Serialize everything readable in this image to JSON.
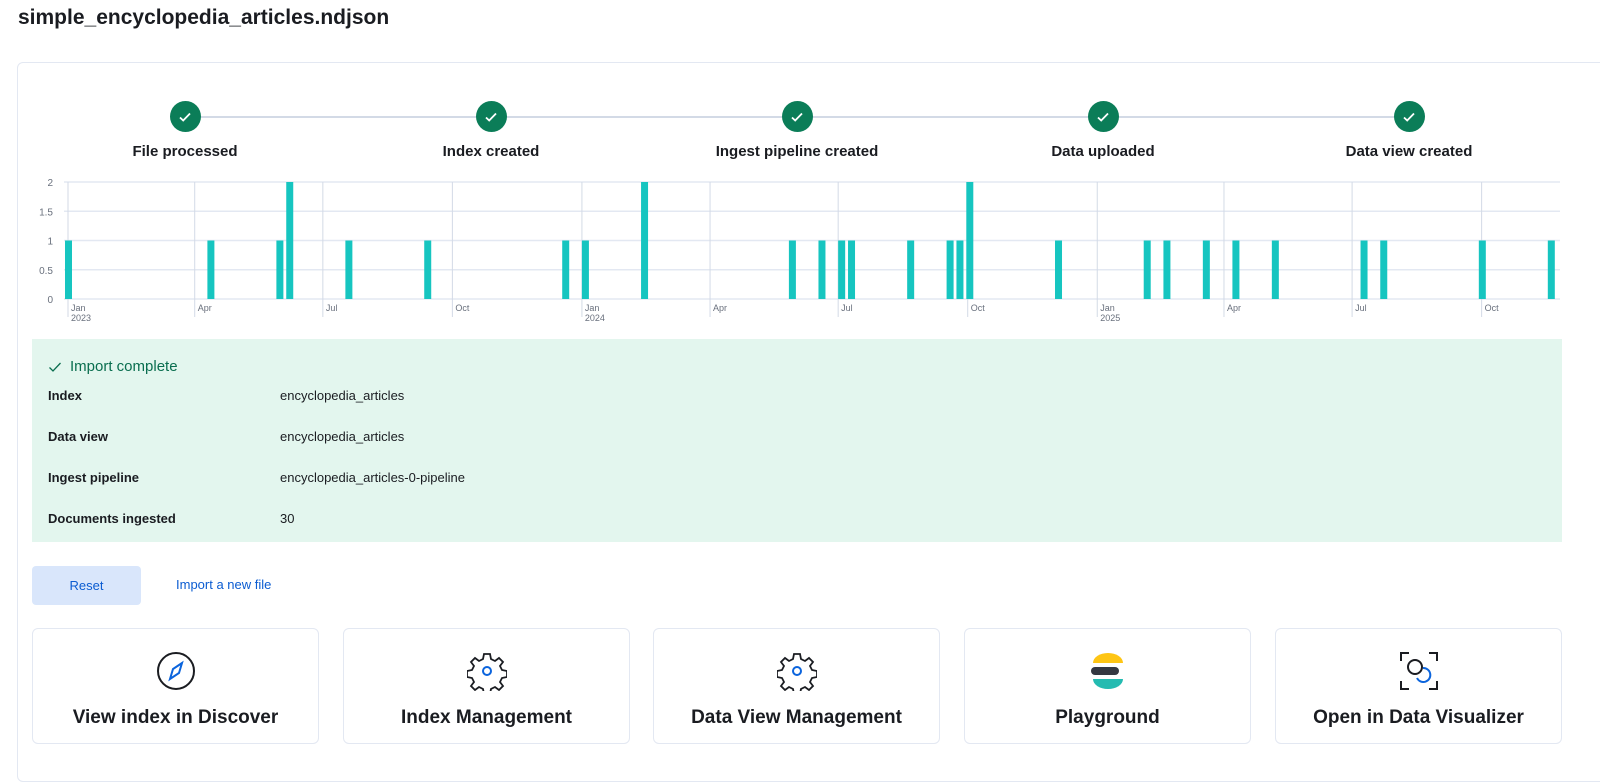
{
  "title": "simple_encyclopedia_articles.ndjson",
  "steps": [
    {
      "label": "File processed",
      "status": "complete"
    },
    {
      "label": "Index created",
      "status": "complete"
    },
    {
      "label": "Ingest pipeline created",
      "status": "complete"
    },
    {
      "label": "Data uploaded",
      "status": "complete"
    },
    {
      "label": "Data view created",
      "status": "complete"
    }
  ],
  "colors": {
    "accent": "#0b7d58",
    "bar": "#16c5c0",
    "success_bg": "#e3f6ee",
    "link": "#0b5cd1"
  },
  "chart_data": {
    "type": "bar",
    "interval": "week",
    "ylim": [
      0,
      2
    ],
    "yticks": [
      "0",
      "0.5",
      "1",
      "1.5",
      "2"
    ],
    "xticks": [
      {
        "date": "2023-01-01",
        "label": "Jan",
        "sub": "2023"
      },
      {
        "date": "2023-04-01",
        "label": "Apr",
        "sub": ""
      },
      {
        "date": "2023-07-01",
        "label": "Jul",
        "sub": ""
      },
      {
        "date": "2023-10-01",
        "label": "Oct",
        "sub": ""
      },
      {
        "date": "2024-01-01",
        "label": "Jan",
        "sub": "2024"
      },
      {
        "date": "2024-04-01",
        "label": "Apr",
        "sub": ""
      },
      {
        "date": "2024-07-01",
        "label": "Jul",
        "sub": ""
      },
      {
        "date": "2024-10-01",
        "label": "Oct",
        "sub": ""
      },
      {
        "date": "2025-01-01",
        "label": "Jan",
        "sub": "2025"
      },
      {
        "date": "2025-04-01",
        "label": "Apr",
        "sub": ""
      },
      {
        "date": "2025-07-01",
        "label": "Jul",
        "sub": ""
      },
      {
        "date": "2025-10-01",
        "label": "Oct",
        "sub": ""
      }
    ],
    "x": [
      "2022-12-26",
      "2023-04-10",
      "2023-05-29",
      "2023-06-05",
      "2023-07-17",
      "2023-09-11",
      "2023-12-18",
      "2024-01-01",
      "2024-02-12",
      "2024-05-27",
      "2024-06-17",
      "2024-07-01",
      "2024-07-08",
      "2024-08-19",
      "2024-09-16",
      "2024-09-23",
      "2024-09-30",
      "2024-12-02",
      "2025-02-03",
      "2025-02-17",
      "2025-03-17",
      "2025-04-07",
      "2025-05-05",
      "2025-07-07",
      "2025-07-21",
      "2025-09-29",
      "2025-11-17"
    ],
    "values": [
      1,
      1,
      1,
      2,
      1,
      1,
      1,
      1,
      2,
      1,
      1,
      1,
      1,
      1,
      1,
      1,
      2,
      1,
      1,
      1,
      1,
      1,
      1,
      1,
      1,
      1,
      1
    ],
    "grid": true
  },
  "import": {
    "title": "Import complete",
    "rows": [
      {
        "key": "Index",
        "value": "encyclopedia_articles"
      },
      {
        "key": "Data view",
        "value": "encyclopedia_articles"
      },
      {
        "key": "Ingest pipeline",
        "value": "encyclopedia_articles-0-pipeline"
      },
      {
        "key": "Documents ingested",
        "value": "30"
      }
    ]
  },
  "actions": {
    "reset": "Reset",
    "import_new": "Import a new file"
  },
  "cards": [
    {
      "label": "View index in Discover",
      "icon": "compass-icon"
    },
    {
      "label": "Index Management",
      "icon": "gear-icon"
    },
    {
      "label": "Data View Management",
      "icon": "gear-icon"
    },
    {
      "label": "Playground",
      "icon": "elastic-logo-icon"
    },
    {
      "label": "Open in Data Visualizer",
      "icon": "data-visualizer-icon"
    }
  ]
}
